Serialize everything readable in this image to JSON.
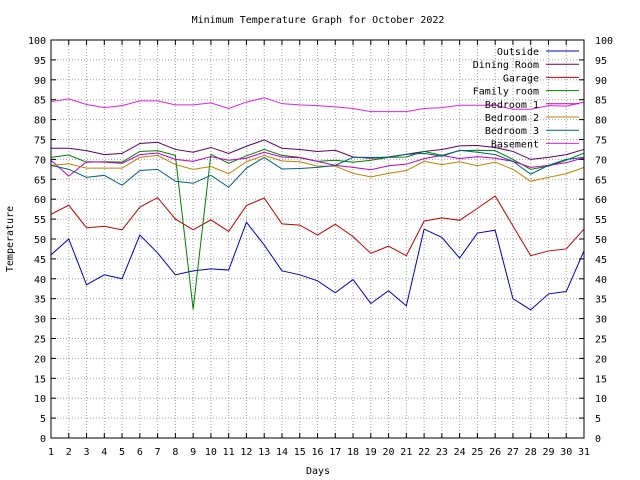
{
  "chart_data": {
    "type": "line",
    "title": "Minimum Temperature Graph for October 2022",
    "xlabel": "Days",
    "ylabel": "Temperature",
    "x": [
      1,
      2,
      3,
      4,
      5,
      6,
      7,
      8,
      9,
      10,
      11,
      12,
      13,
      14,
      15,
      16,
      17,
      18,
      19,
      20,
      21,
      22,
      23,
      24,
      25,
      26,
      27,
      28,
      29,
      30,
      31
    ],
    "xlim": [
      1,
      31
    ],
    "ylim": [
      0,
      100
    ],
    "yticks": [
      0,
      5,
      10,
      15,
      20,
      25,
      30,
      35,
      40,
      45,
      50,
      55,
      60,
      65,
      70,
      75,
      80,
      85,
      90,
      95,
      100
    ],
    "y2ticks": [
      0,
      5,
      10,
      15,
      20,
      25,
      30,
      35,
      40,
      45,
      50,
      55,
      60,
      65,
      70,
      75,
      80,
      85,
      90,
      95,
      100
    ],
    "grid": true,
    "legend_position": "top-right",
    "series": [
      {
        "name": "Outside",
        "color": "#0000c0",
        "values": [
          46,
          50,
          38.5,
          41,
          40,
          51,
          46.5,
          41,
          42,
          42.5,
          42.2,
          54.2,
          48.5,
          42,
          41,
          39.5,
          36.5,
          39.8,
          33.8,
          37,
          33.2,
          52.5,
          50.4,
          45.2,
          51.5,
          52.2,
          35,
          32.2,
          36.2,
          36.8,
          47
        ]
      },
      {
        "name": "Dining Room",
        "color": "#600060",
        "values": [
          72.8,
          72.8,
          72.2,
          71.2,
          71.5,
          74,
          74.3,
          72.5,
          71.8,
          73,
          71.5,
          73.3,
          74.9,
          72.8,
          72.5,
          72,
          72.3,
          70.6,
          70.3,
          70.6,
          71.3,
          72,
          72.5,
          73.4,
          73.5,
          73,
          72,
          70,
          70.5,
          71.2,
          72.5
        ]
      },
      {
        "name": "Garage",
        "color": "#c00000",
        "values": [
          56.2,
          58.5,
          52.8,
          53.2,
          52.3,
          58,
          60.4,
          55,
          52.3,
          54.8,
          51.9,
          58.4,
          60.3,
          53.8,
          53.5,
          51,
          53.7,
          50.6,
          46.4,
          48.2,
          45.8,
          54.5,
          55.3,
          54.7,
          57.7,
          60.8,
          53.3,
          45.8,
          47,
          47.5,
          52.5
        ]
      },
      {
        "name": "Family room",
        "color": "#008000",
        "values": [
          70.5,
          71.1,
          69.3,
          69.4,
          69.3,
          72,
          72.2,
          71,
          32.3,
          71.3,
          69,
          70.9,
          72.5,
          71,
          70.5,
          69.5,
          69.8,
          69.3,
          69.8,
          70.5,
          70.6,
          72,
          71,
          72.2,
          72.3,
          72.2,
          70,
          67.5,
          68.3,
          69.8,
          71.6
        ]
      },
      {
        "name": "Bedroom 1",
        "color": "#c000c0",
        "values": [
          69.8,
          65.8,
          69.4,
          69.3,
          69,
          71.2,
          71.6,
          70,
          69.5,
          70.7,
          69.8,
          70.3,
          71.8,
          70.6,
          70.4,
          69.5,
          68.5,
          68,
          67.4,
          68.4,
          68.8,
          70.2,
          71,
          70.2,
          70.7,
          70.3,
          69.5,
          68,
          68.5,
          69.2,
          70.4
        ]
      },
      {
        "name": "Bedroom 2",
        "color": "#c08000",
        "values": [
          68.5,
          68.9,
          67.8,
          67.8,
          67.8,
          70.5,
          71,
          68.7,
          67.5,
          68.2,
          66.4,
          69.4,
          71,
          69.6,
          69.4,
          68.3,
          68.3,
          66.5,
          65.6,
          66.5,
          67.2,
          69.5,
          68.7,
          69.4,
          68.4,
          69.3,
          67.5,
          64.5,
          65.5,
          66.4,
          68
        ]
      },
      {
        "name": "Bedroom 3",
        "color": "#006080",
        "values": [
          68.5,
          67.5,
          65.5,
          66,
          63.5,
          67.2,
          67.5,
          64.5,
          64,
          66,
          63,
          67.8,
          70.5,
          67.6,
          67.7,
          68,
          68.5,
          70.5,
          70.5,
          70.5,
          71.3,
          71.5,
          70.8,
          72.3,
          71.8,
          71.2,
          69.5,
          66.3,
          68.5,
          70,
          70.5
        ]
      },
      {
        "name": "Basement",
        "color": "#e020e0",
        "values": [
          84.5,
          85.2,
          83.8,
          83,
          83.5,
          84.7,
          84.7,
          83.7,
          83.7,
          84.2,
          82.8,
          84.4,
          85.5,
          84,
          83.7,
          83.5,
          83.2,
          82.8,
          82,
          82,
          82,
          82.8,
          83,
          83.6,
          83.6,
          83.6,
          82.6,
          82.6,
          83.5,
          83.4,
          84.4
        ]
      }
    ]
  }
}
